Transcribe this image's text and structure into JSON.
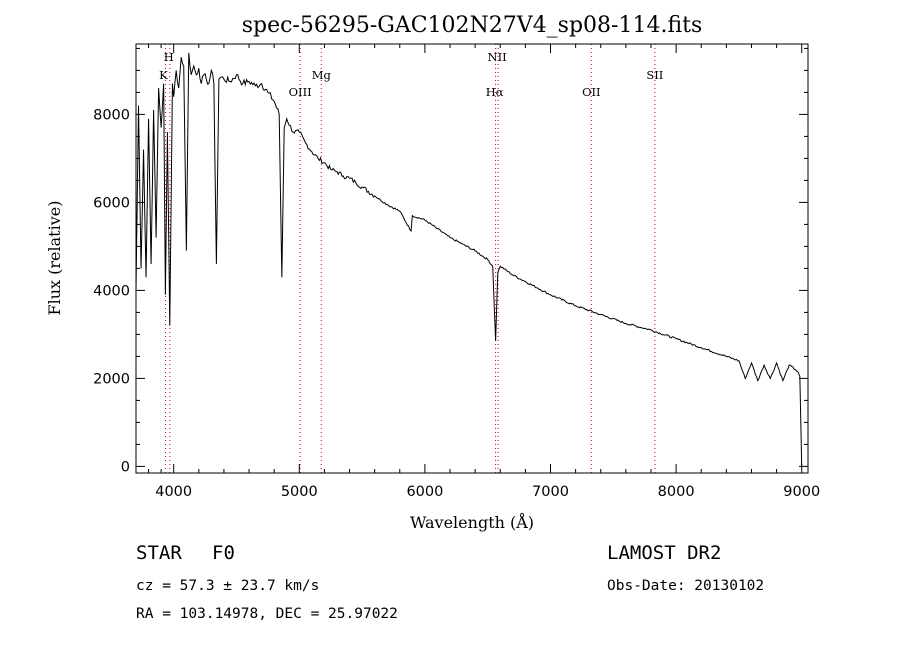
{
  "chart_data": {
    "type": "line",
    "title": "spec-56295-GAC102N27V4_sp08-114.fits",
    "xlabel": "Wavelength (Å)",
    "ylabel": "Flux (relative)",
    "xlim": [
      3700,
      9050
    ],
    "ylim": [
      -150,
      9600
    ],
    "x_ticks": [
      4000,
      5000,
      6000,
      7000,
      8000,
      9000
    ],
    "y_ticks": [
      0,
      2000,
      4000,
      6000,
      8000
    ],
    "x_tick_labels": [
      "4000",
      "5000",
      "6000",
      "7000",
      "8000",
      "9000"
    ],
    "y_tick_labels": [
      "0",
      "2000",
      "4000",
      "6000",
      "8000"
    ],
    "line_color": "#000000",
    "marker_color": "#cc0000",
    "spectral_lines": [
      {
        "name": "K",
        "wavelength": 3934,
        "label_row": "low"
      },
      {
        "name": "H",
        "wavelength": 3969,
        "label_row": "high"
      },
      {
        "name": "OIII",
        "wavelength": 5007,
        "label_row": "low"
      },
      {
        "name": "Mg",
        "wavelength": 5175,
        "label_row": "mid"
      },
      {
        "name": "NII",
        "wavelength": 6583,
        "label_row": "high"
      },
      {
        "name": "Hα",
        "wavelength": 6563,
        "label_row": "low"
      },
      {
        "name": "OII",
        "wavelength": 7325,
        "label_row": "low"
      },
      {
        "name": "SII",
        "wavelength": 7831,
        "label_row": "mid"
      }
    ],
    "series": [
      {
        "name": "flux",
        "x": [
          3700,
          3720,
          3740,
          3760,
          3780,
          3800,
          3820,
          3840,
          3860,
          3880,
          3900,
          3920,
          3934,
          3950,
          3969,
          3990,
          4000,
          4020,
          4040,
          4060,
          4080,
          4101,
          4120,
          4140,
          4160,
          4180,
          4200,
          4220,
          4240,
          4260,
          4280,
          4300,
          4320,
          4340,
          4360,
          4380,
          4400,
          4450,
          4500,
          4550,
          4600,
          4650,
          4700,
          4750,
          4800,
          4840,
          4861,
          4880,
          4900,
          4950,
          5000,
          5050,
          5100,
          5150,
          5200,
          5250,
          5300,
          5350,
          5400,
          5450,
          5500,
          5600,
          5700,
          5800,
          5890,
          5900,
          6000,
          6100,
          6200,
          6300,
          6400,
          6500,
          6540,
          6563,
          6580,
          6600,
          6700,
          6800,
          6900,
          7000,
          7200,
          7400,
          7600,
          7800,
          8000,
          8200,
          8400,
          8500,
          8550,
          8600,
          8650,
          8700,
          8750,
          8800,
          8850,
          8900,
          8950,
          8970,
          8985,
          9000
        ],
        "y": [
          4000,
          8200,
          4500,
          7200,
          4300,
          7900,
          4600,
          8100,
          5200,
          8600,
          7700,
          8700,
          3900,
          7600,
          3200,
          8700,
          8400,
          9000,
          8600,
          9300,
          9100,
          4900,
          9400,
          8900,
          9100,
          8900,
          9050,
          8700,
          8900,
          8800,
          8700,
          9000,
          8700,
          4600,
          8800,
          8850,
          8800,
          8750,
          8900,
          8700,
          8750,
          8650,
          8700,
          8500,
          8300,
          8000,
          4300,
          7700,
          7900,
          7600,
          7600,
          7350,
          7150,
          7000,
          6900,
          6750,
          6700,
          6600,
          6550,
          6450,
          6350,
          6150,
          5950,
          5800,
          5350,
          5700,
          5600,
          5400,
          5200,
          5050,
          4900,
          4700,
          4550,
          2850,
          4400,
          4550,
          4350,
          4200,
          4050,
          3900,
          3650,
          3450,
          3250,
          3100,
          2900,
          2700,
          2500,
          2400,
          2000,
          2350,
          1950,
          2300,
          2000,
          2350,
          1950,
          2300,
          2200,
          2150,
          2050,
          0
        ]
      }
    ]
  },
  "info": {
    "object_class": "STAR",
    "subclass": "F0",
    "survey": "LAMOST DR2",
    "cz": "cz = 57.3 ± 23.7 km/s",
    "obs_date": "Obs-Date: 20130102",
    "coords": "RA = 103.14978, DEC =  25.97022"
  }
}
